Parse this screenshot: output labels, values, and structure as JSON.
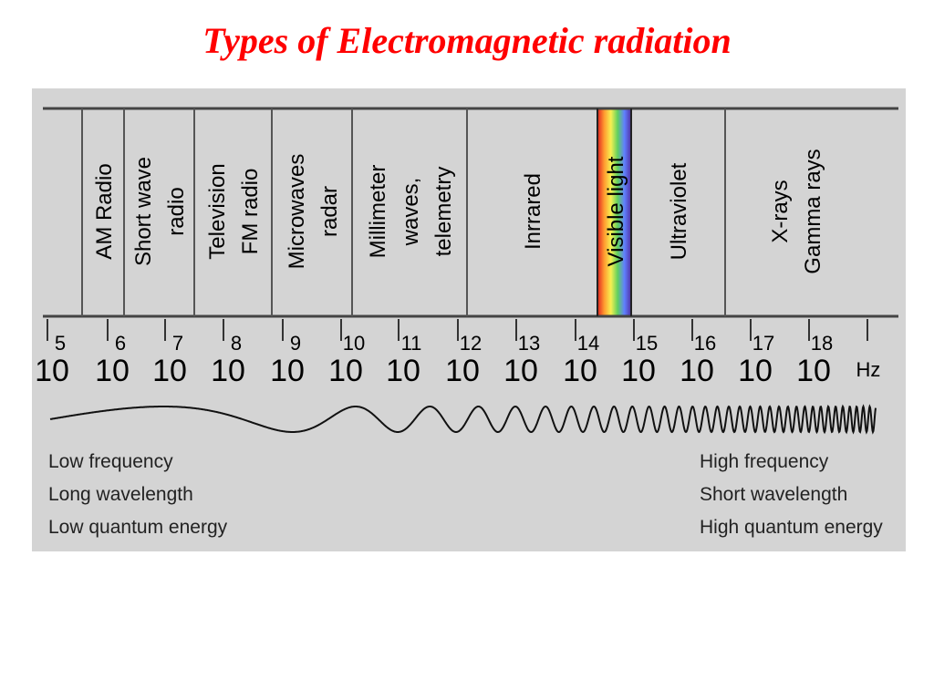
{
  "title": "Types of Electromagnetic radiation",
  "bands": [
    {
      "lines": [
        "AM Radio"
      ]
    },
    {
      "lines": [
        "Short wave",
        "radio"
      ]
    },
    {
      "lines": [
        "Television",
        "FM radio"
      ]
    },
    {
      "lines": [
        "Microwaves",
        "radar"
      ]
    },
    {
      "lines": [
        "Millimeter",
        "waves,",
        "telemetry"
      ]
    },
    {
      "lines": [
        "Inrrared"
      ]
    },
    {
      "lines": [
        "Visible light"
      ]
    },
    {
      "lines": [
        "Ultraviolet"
      ]
    },
    {
      "lines": [
        "X-rays",
        "Gamma rays"
      ]
    }
  ],
  "scale": {
    "base": "10",
    "exponents": [
      5,
      6,
      7,
      8,
      9,
      10,
      11,
      12,
      13,
      14,
      15,
      16,
      17,
      18
    ],
    "unit": "Hz"
  },
  "left_notes": [
    "Low frequency",
    "Long wavelength",
    "Low quantum energy"
  ],
  "right_notes": [
    "High frequency",
    "Short wavelength",
    "High quantum energy"
  ]
}
